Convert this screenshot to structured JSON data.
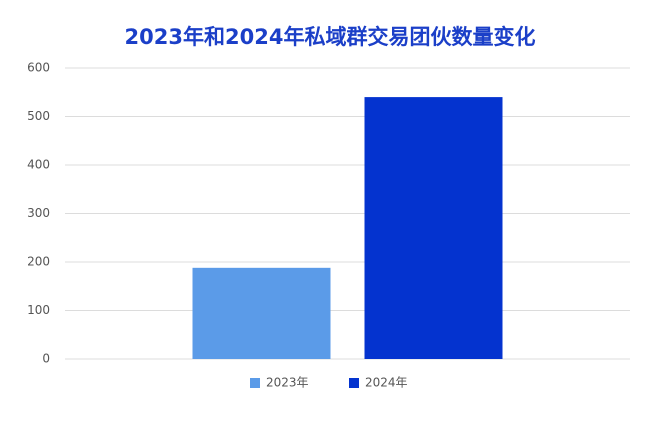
{
  "chart_data": {
    "type": "bar",
    "title": "2023年和2024年私域群交易团伙数量变化",
    "categories": [
      null
    ],
    "series": [
      {
        "name": "2023年",
        "color": "#5b9be8",
        "values": [
          188
        ]
      },
      {
        "name": "2024年",
        "color": "#0433cf",
        "values": [
          540
        ]
      }
    ],
    "ylim": [
      0,
      600
    ],
    "yticks": [
      0,
      100,
      200,
      300,
      400,
      500,
      600
    ],
    "grid": true,
    "legend": "bottom"
  }
}
